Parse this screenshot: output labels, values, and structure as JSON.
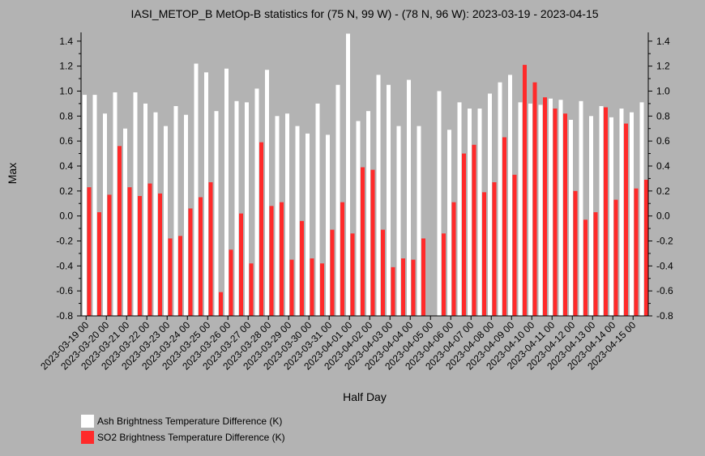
{
  "chart_data": {
    "type": "bar",
    "title": "IASI_METOP_B MetOp-B statistics for (75 N, 99 W) - (78 N, 96 W): 2023-03-19 - 2023-04-15",
    "xlabel": "Half Day",
    "ylabel": "Max",
    "ylim": [
      -0.8,
      1.47
    ],
    "yticks": [
      "1.4",
      "1.2",
      "1.0",
      "0.8",
      "0.6",
      "0.4",
      "0.2",
      "0.0",
      "-0.2",
      "-0.4",
      "-0.6",
      "-0.8"
    ],
    "xticks": [
      "2023-03-19 00",
      "2023-03-20 00",
      "2023-03-21 00",
      "2023-03-22 00",
      "2023-03-23 00",
      "2023-03-24 00",
      "2023-03-25 00",
      "2023-03-26 00",
      "2023-03-27 00",
      "2023-03-28 00",
      "2023-03-29 00",
      "2023-03-30 00",
      "2023-03-31 00",
      "2023-04-01 00",
      "2023-04-02 00",
      "2023-04-03 00",
      "2023-04-04 00",
      "2023-04-05 00",
      "2023-04-06 00",
      "2023-04-07 00",
      "2023-04-08 00",
      "2023-04-09 00",
      "2023-04-10 00",
      "2023-04-11 00",
      "2023-04-12 00",
      "2023-04-13 00",
      "2023-04-14 00",
      "2023-04-15 00"
    ],
    "grid": false,
    "legend_placement": "bottom-left",
    "series": [
      {
        "name": "Ash Brightness Temperature Difference (K)",
        "color": "#ffffff",
        "values": [
          0.97,
          0.97,
          0.82,
          0.99,
          0.7,
          0.99,
          0.9,
          0.83,
          0.72,
          0.88,
          0.81,
          1.22,
          1.15,
          0.84,
          1.18,
          0.92,
          0.91,
          1.02,
          1.17,
          0.8,
          0.82,
          0.72,
          0.66,
          0.9,
          0.65,
          1.05,
          1.46,
          0.76,
          0.84,
          1.13,
          1.05,
          0.72,
          1.09,
          0.72,
          null,
          1.0,
          0.69,
          0.91,
          0.86,
          0.86,
          0.98,
          1.07,
          1.13,
          0.91,
          0.9,
          0.89,
          0.94,
          0.93,
          0.77,
          0.92,
          0.8,
          0.88,
          0.79,
          0.86,
          0.83,
          0.91
        ]
      },
      {
        "name": "SO2 Brightness Temperature Difference (K)",
        "color": "#ff2a2a",
        "values": [
          0.23,
          0.03,
          0.17,
          0.56,
          0.23,
          0.16,
          0.26,
          0.18,
          -0.18,
          -0.16,
          0.06,
          0.15,
          0.27,
          -0.61,
          -0.27,
          0.02,
          -0.38,
          0.59,
          0.08,
          0.11,
          -0.35,
          -0.04,
          -0.34,
          -0.38,
          -0.11,
          0.11,
          -0.14,
          0.39,
          0.37,
          -0.11,
          -0.41,
          -0.34,
          -0.35,
          -0.18,
          null,
          -0.14,
          0.11,
          0.5,
          0.57,
          0.19,
          0.27,
          0.63,
          0.33,
          1.21,
          1.07,
          0.95,
          0.86,
          0.82,
          0.2,
          -0.03,
          0.03,
          0.87,
          0.13,
          0.74,
          0.22,
          0.29
        ]
      }
    ]
  }
}
